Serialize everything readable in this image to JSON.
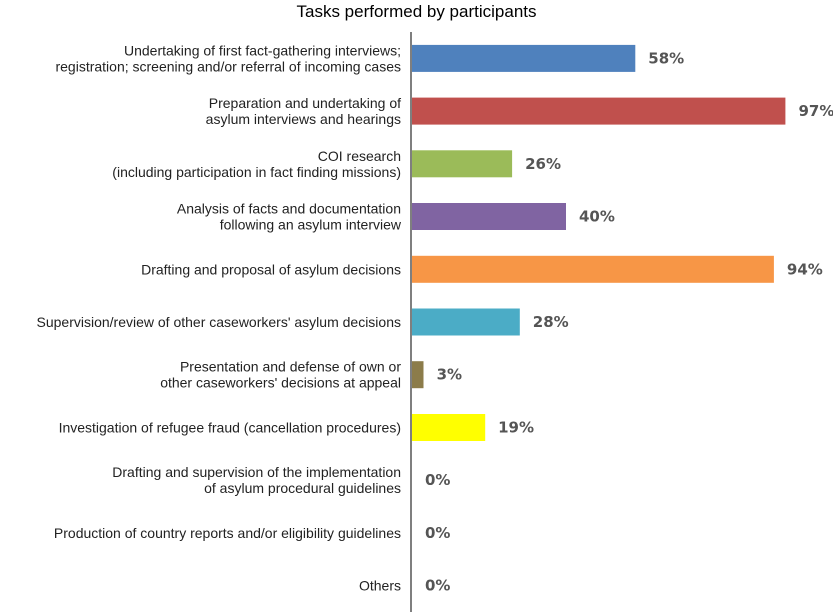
{
  "chart_data": {
    "type": "bar",
    "orientation": "horizontal",
    "title": "Tasks performed by participants",
    "xlim": [
      0,
      100
    ],
    "grid": false,
    "categories": [
      [
        "Undertaking of first fact-gathering interviews;",
        "registration; screening and/or referral of incoming cases"
      ],
      [
        "Preparation and undertaking of",
        "asylum interviews and hearings"
      ],
      [
        "COI research",
        "(including  participation in fact finding missions)"
      ],
      [
        "Analysis of facts and documentation",
        "following an asylum interview"
      ],
      [
        "Drafting and proposal of asylum decisions"
      ],
      [
        "Supervision/review of other caseworkers' asylum decisions"
      ],
      [
        "Presentation and defense of own or",
        "other caseworkers' decisions at appeal"
      ],
      [
        "Investigation of refugee fraud (cancellation procedures)"
      ],
      [
        "Drafting and supervision of the implementation",
        "of asylum procedural guidelines"
      ],
      [
        "Production  of country reports and/or eligibility guidelines"
      ],
      [
        "Others"
      ]
    ],
    "values": [
      58,
      97,
      26,
      40,
      94,
      28,
      3,
      19,
      0,
      0,
      0
    ],
    "value_labels": [
      "58%",
      "97%",
      "26%",
      "40%",
      "94%",
      "28%",
      "3%",
      "19%",
      "0%",
      "0%",
      "0%"
    ],
    "colors": [
      "#4f81bd",
      "#c0504d",
      "#9bbb59",
      "#8064a2",
      "#f79646",
      "#4bacc6",
      "#8c7c4a",
      "#ffff00",
      "#cccccc",
      "#cccccc",
      "#cccccc"
    ],
    "axis_color": "#7f7f7f"
  }
}
